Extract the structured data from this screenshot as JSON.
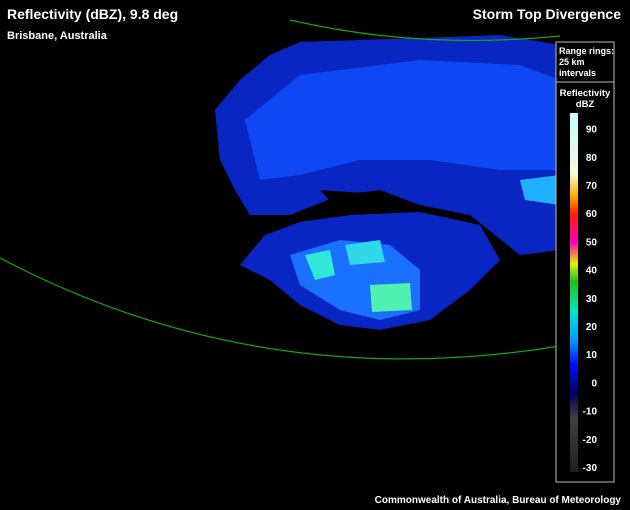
{
  "header": {
    "title": "Reflectivity (dBZ), 9.8 deg",
    "location": "Brisbane, Australia",
    "product": "Storm Top Divergence"
  },
  "legend": {
    "range_note": "Range rings: 25 km intervals",
    "title": "Reflectivity dBZ",
    "ticks": [
      90,
      80,
      70,
      60,
      50,
      40,
      30,
      20,
      10,
      0,
      -10,
      -20,
      -30
    ]
  },
  "footer": "Commonwealth of Australia, Bureau of Meteorology"
}
